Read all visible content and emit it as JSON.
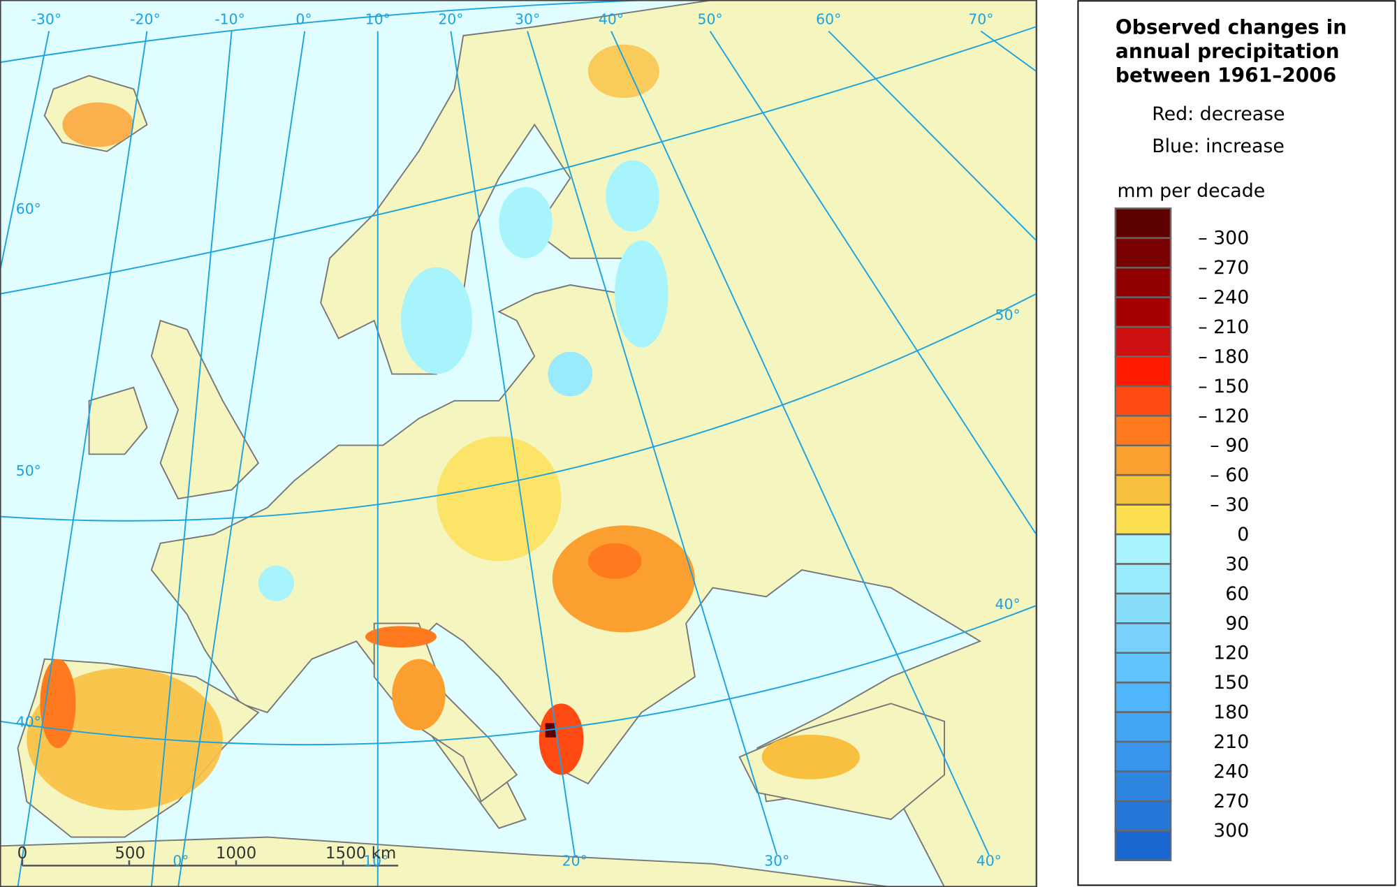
{
  "map": {
    "graticule": {
      "top_labels": [
        "-30°",
        "-20°",
        "-10°",
        "0°",
        "10°",
        "20°",
        "30°",
        "40°",
        "50°",
        "60°",
        "70°"
      ],
      "left_labels": [
        "60°",
        "50°",
        "40°"
      ],
      "right_labels": [
        "50°",
        "40°"
      ],
      "bottom_labels": [
        "0°",
        "10°",
        "20°",
        "30°",
        "40°"
      ]
    },
    "scale_bar": {
      "labels": [
        "0",
        "500",
        "1000",
        "1500 km"
      ]
    }
  },
  "legend": {
    "title": [
      "Observed changes in",
      "annual precipitation",
      "between 1961–2006"
    ],
    "notes": [
      "Red: decrease",
      "Blue: increase"
    ],
    "unit": "mm per decade",
    "colors": [
      "#5c0000",
      "#780000",
      "#900000",
      "#a80000",
      "#cc1010",
      "#ff1a00",
      "#ff4a14",
      "#ff7a1e",
      "#fba030",
      "#f9c040",
      "#fde050",
      "#a8f4fc",
      "#98eafc",
      "#88ddfb",
      "#78d0fb",
      "#62c4fb",
      "#50b6fb",
      "#40a6f5",
      "#3896ec",
      "#2e86e0",
      "#2476d8",
      "#1a66d0"
    ],
    "labels": [
      "– 300",
      "– 270",
      "– 240",
      "– 210",
      "– 180",
      "– 150",
      "– 120",
      "– 90",
      "– 60",
      "– 30",
      "0",
      "30",
      "60",
      "90",
      "120",
      "150",
      "180",
      "210",
      "240",
      "270",
      "300"
    ]
  }
}
